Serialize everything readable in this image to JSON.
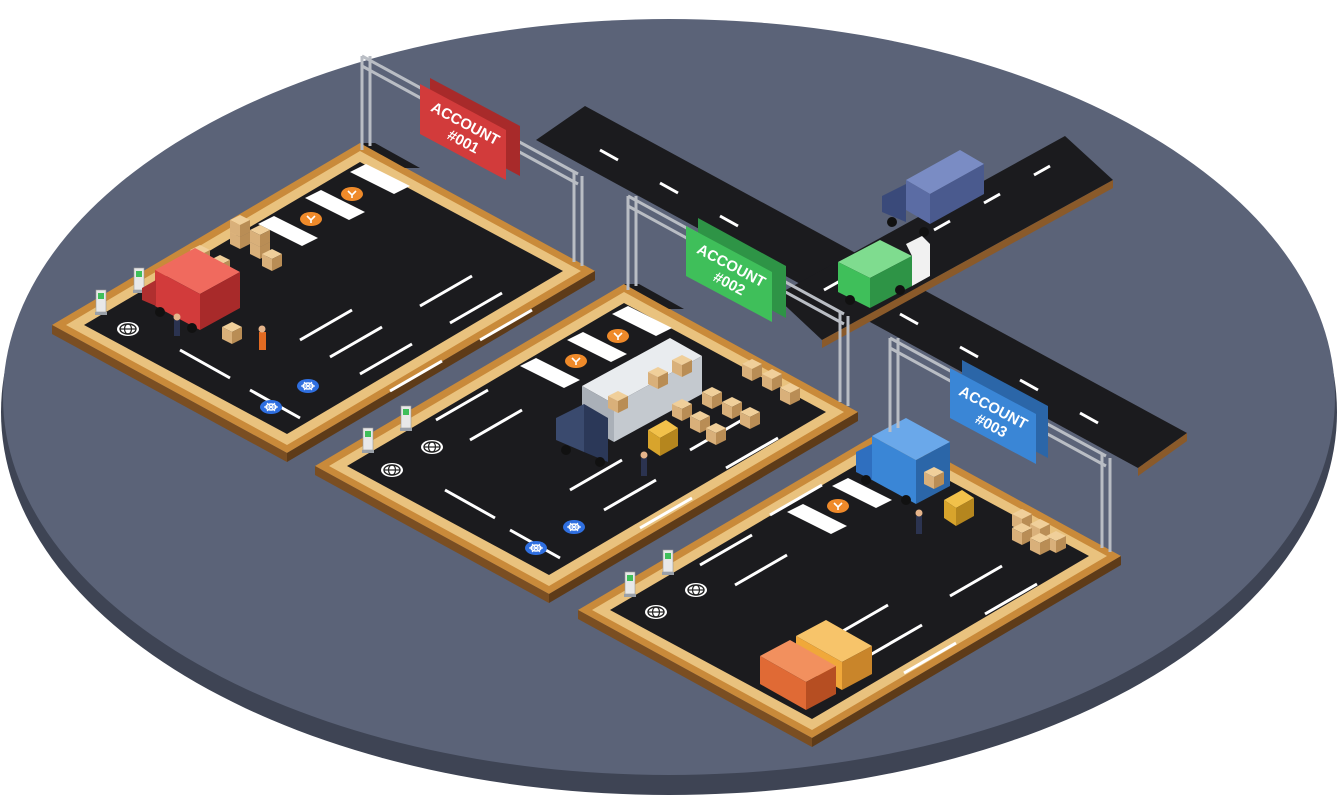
{
  "colors": {
    "platform_top": "#5b6378",
    "platform_side": "#3e4454",
    "asphalt": "#1b1b1e",
    "curb_outer": "#c98a3a",
    "curb_inner": "#e9c27e",
    "line": "#ffffff",
    "truss": "#b9bdc4",
    "account_001": "#d23b3b",
    "account_002": "#3fbf5a",
    "account_003": "#3a86d6",
    "crate": "#d9b07a",
    "container_orange": "#e06a35",
    "container_yellow": "#f0a83a",
    "icon_orange": "#ef8a2a",
    "icon_blue": "#2f6fe0"
  },
  "signs": [
    {
      "line1": "ACCOUNT",
      "line2": "#001"
    },
    {
      "line1": "ACCOUNT",
      "line2": "#002"
    },
    {
      "line1": "ACCOUNT",
      "line2": "#003"
    }
  ],
  "icons": {
    "globe": "globe-icon",
    "kubernetes": "kubernetes-icon",
    "fork": "fork-icon",
    "charger": "charger-icon"
  }
}
